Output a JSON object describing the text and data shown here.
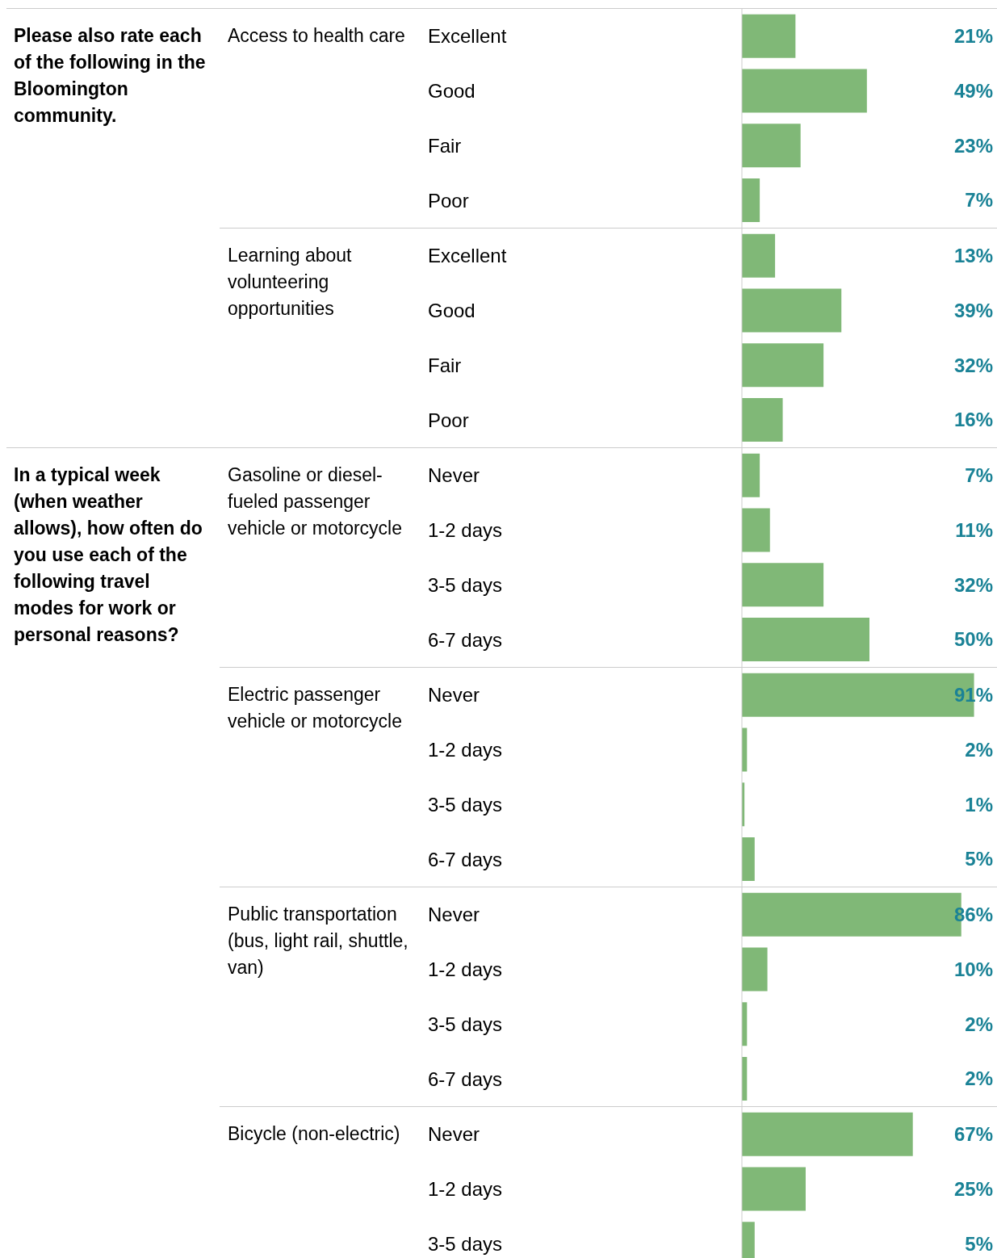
{
  "chart_data": [
    {
      "type": "bar",
      "orientation": "horizontal",
      "ylabel": "Please also rate each of the following in the Bloomington community.",
      "subtitle": "Access to health care",
      "categories": [
        "Excellent",
        "Good",
        "Fair",
        "Poor"
      ],
      "values": [
        21,
        49,
        23,
        7
      ],
      "value_labels": [
        "21%",
        "49%",
        "23%",
        "7%"
      ],
      "color": "#80b877",
      "xlim": [
        0,
        100
      ],
      "tick_labels": "y",
      "grid": false,
      "legend": false
    },
    {
      "type": "bar",
      "orientation": "horizontal",
      "subtitle": "Learning about volunteering opportunities",
      "categories": [
        "Excellent",
        "Good",
        "Fair",
        "Poor"
      ],
      "values": [
        13,
        39,
        32,
        16
      ],
      "value_labels": [
        "13%",
        "39%",
        "32%",
        "16%"
      ],
      "color": "#80b877",
      "xlim": [
        0,
        100
      ],
      "tick_labels": "y",
      "grid": false,
      "legend": false
    },
    {
      "type": "bar",
      "orientation": "horizontal",
      "ylabel": "In a typical week (when weather allows), how often do you use each of the following travel modes for work or personal reasons?",
      "subtitle": "Gasoline or diesel-fueled passenger vehicle or motorcycle",
      "categories": [
        "Never",
        "1-2 days",
        "3-5 days",
        "6-7 days"
      ],
      "values": [
        7,
        11,
        32,
        50
      ],
      "value_labels": [
        "7%",
        "11%",
        "32%",
        "50%"
      ],
      "color": "#80b877",
      "xlim": [
        0,
        100
      ],
      "tick_labels": "y",
      "grid": false,
      "legend": false
    },
    {
      "type": "bar",
      "orientation": "horizontal",
      "subtitle": "Electric passenger vehicle or motorcycle",
      "categories": [
        "Never",
        "1-2 days",
        "3-5 days",
        "6-7 days"
      ],
      "values": [
        91,
        2,
        1,
        5
      ],
      "value_labels": [
        "91%",
        "2%",
        "1%",
        "5%"
      ],
      "color": "#80b877",
      "xlim": [
        0,
        100
      ],
      "tick_labels": "y",
      "grid": false,
      "legend": false
    },
    {
      "type": "bar",
      "orientation": "horizontal",
      "subtitle": "Public transportation (bus, light rail, shuttle, van)",
      "categories": [
        "Never",
        "1-2 days",
        "3-5 days",
        "6-7 days"
      ],
      "values": [
        86,
        10,
        2,
        2
      ],
      "value_labels": [
        "86%",
        "10%",
        "2%",
        "2%"
      ],
      "color": "#80b877",
      "xlim": [
        0,
        100
      ],
      "tick_labels": "y",
      "grid": false,
      "legend": false
    },
    {
      "type": "bar",
      "orientation": "horizontal",
      "subtitle": "Bicycle (non-electric)",
      "categories": [
        "Never",
        "1-2 days",
        "3-5 days"
      ],
      "values": [
        67,
        25,
        5
      ],
      "value_labels": [
        "67%",
        "25%",
        "5%"
      ],
      "color": "#80b877",
      "xlim": [
        0,
        100
      ],
      "tick_labels": "y",
      "grid": false,
      "legend": false
    }
  ]
}
